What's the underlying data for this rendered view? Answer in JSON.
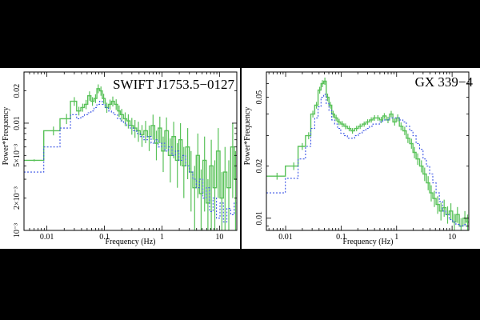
{
  "colors": {
    "background": "#000000",
    "panel": "#ffffff",
    "series_solid": "#59c259",
    "series_dashed": "#3b55e6",
    "axis": "#000000"
  },
  "chart_data": [
    {
      "type": "line",
      "title": "SWIFT J1753.5−0127",
      "xlabel": "Frequency (Hz)",
      "ylabel": "Power*Frequency",
      "xscale": "log",
      "yscale": "log",
      "xlim": [
        0.004,
        20
      ],
      "ylim": [
        0.001,
        0.03
      ],
      "x_ticks": [
        0.01,
        0.1,
        1,
        10
      ],
      "x_tick_labels": [
        "0.01",
        "0.1",
        "1",
        "10"
      ],
      "y_ticks": [
        0.001,
        0.002,
        0.005,
        0.01,
        0.02
      ],
      "y_tick_labels": [
        "10⁻³",
        "2×10⁻³",
        "5×10⁻³",
        "0.01",
        "0.02"
      ],
      "grid": false,
      "series": [
        {
          "style": "solid-steps-with-errors",
          "x": [
            0.006,
            0.013,
            0.022,
            0.03,
            0.036,
            0.042,
            0.048,
            0.055,
            0.062,
            0.07,
            0.078,
            0.087,
            0.097,
            0.11,
            0.125,
            0.14,
            0.16,
            0.18,
            0.2,
            0.23,
            0.26,
            0.3,
            0.34,
            0.39,
            0.45,
            0.52,
            0.6,
            0.7,
            0.8,
            0.92,
            1.05,
            1.2,
            1.4,
            1.6,
            1.85,
            2.1,
            2.4,
            2.8,
            3.2,
            3.7,
            4.2,
            4.8,
            5.5,
            6.3,
            7.2,
            8.3,
            9.5,
            11,
            12.5,
            14.5,
            17,
            19
          ],
          "y": [
            0.0045,
            0.0085,
            0.011,
            0.016,
            0.013,
            0.014,
            0.015,
            0.018,
            0.016,
            0.017,
            0.021,
            0.02,
            0.017,
            0.014,
            0.015,
            0.016,
            0.015,
            0.013,
            0.012,
            0.011,
            0.0105,
            0.0095,
            0.009,
            0.0085,
            0.0078,
            0.0085,
            0.0075,
            0.0095,
            0.0065,
            0.009,
            0.0055,
            0.0085,
            0.005,
            0.0075,
            0.0045,
            0.007,
            0.004,
            0.006,
            0.0035,
            0.0025,
            0.005,
            0.0022,
            0.0045,
            0.0018,
            0.004,
            0.0025,
            0.0055,
            0.002,
            0.0035,
            0.0025,
            0.006,
            0.003
          ],
          "yerr": [
            0.0001,
            0.0008,
            0.0012,
            0.0015,
            0.0012,
            0.0012,
            0.0015,
            0.0018,
            0.0015,
            0.0016,
            0.002,
            0.002,
            0.0018,
            0.0015,
            0.0016,
            0.0017,
            0.0017,
            0.0016,
            0.0016,
            0.0016,
            0.0016,
            0.0017,
            0.0017,
            0.0018,
            0.0018,
            0.002,
            0.002,
            0.0025,
            0.002,
            0.0025,
            0.002,
            0.0028,
            0.0022,
            0.0028,
            0.002,
            0.003,
            0.002,
            0.003,
            0.002,
            0.0015,
            0.003,
            0.0015,
            0.003,
            0.0012,
            0.003,
            0.002,
            0.0035,
            0.0015,
            0.0025,
            0.002,
            0.004,
            0.0025
          ]
        },
        {
          "style": "dotted-steps",
          "x": [
            0.006,
            0.013,
            0.022,
            0.03,
            0.036,
            0.042,
            0.048,
            0.055,
            0.062,
            0.07,
            0.078,
            0.087,
            0.097,
            0.11,
            0.125,
            0.14,
            0.16,
            0.18,
            0.2,
            0.23,
            0.26,
            0.3,
            0.34,
            0.39,
            0.45,
            0.52,
            0.6,
            0.7,
            0.8,
            0.92,
            1.05,
            1.2,
            1.4,
            1.6,
            1.85,
            2.1,
            2.4,
            2.8,
            3.2,
            3.7,
            4.2,
            4.8,
            5.5,
            6.3,
            7.2,
            8.3,
            9.5,
            11,
            12.5,
            14.5,
            17,
            19
          ],
          "y": [
            0.0035,
            0.006,
            0.009,
            0.012,
            0.011,
            0.0115,
            0.012,
            0.0125,
            0.013,
            0.014,
            0.015,
            0.016,
            0.015,
            0.014,
            0.013,
            0.0125,
            0.012,
            0.011,
            0.0105,
            0.01,
            0.0095,
            0.009,
            0.0085,
            0.008,
            0.0075,
            0.007,
            0.0075,
            0.0065,
            0.007,
            0.006,
            0.0065,
            0.0055,
            0.006,
            0.005,
            0.0055,
            0.0045,
            0.005,
            0.004,
            0.0035,
            0.003,
            0.0025,
            0.003,
            0.002,
            0.0025,
            0.0015,
            0.002,
            0.0013,
            0.0018,
            0.0012,
            0.0016,
            0.0014,
            0.0018
          ]
        }
      ]
    },
    {
      "type": "line",
      "title": "GX 339−4",
      "xlabel": "Frequency (Hz)",
      "ylabel": "Power*Frequency",
      "xscale": "log",
      "yscale": "log",
      "xlim": [
        0.0045,
        20
      ],
      "ylim": [
        0.0085,
        0.07
      ],
      "x_ticks": [
        0.01,
        0.1,
        1,
        10
      ],
      "x_tick_labels": [
        "0.01",
        "0.1",
        "1",
        "10"
      ],
      "y_ticks": [
        0.01,
        0.02,
        0.05
      ],
      "y_tick_labels": [
        "0.01",
        "0.02",
        "0.05"
      ],
      "grid": false,
      "series": [
        {
          "style": "solid-steps-with-errors",
          "x": [
            0.007,
            0.014,
            0.02,
            0.026,
            0.031,
            0.036,
            0.041,
            0.046,
            0.051,
            0.057,
            0.064,
            0.072,
            0.081,
            0.092,
            0.105,
            0.12,
            0.14,
            0.16,
            0.19,
            0.22,
            0.26,
            0.3,
            0.35,
            0.4,
            0.46,
            0.53,
            0.6,
            0.7,
            0.8,
            0.92,
            1.05,
            1.2,
            1.4,
            1.6,
            1.85,
            2.1,
            2.4,
            2.8,
            3.2,
            3.7,
            4.2,
            4.8,
            5.5,
            6.3,
            7.2,
            8.3,
            9.5,
            11,
            12.5,
            14.5,
            17,
            19
          ],
          "y": [
            0.0175,
            0.02,
            0.026,
            0.03,
            0.04,
            0.045,
            0.055,
            0.06,
            0.062,
            0.05,
            0.045,
            0.04,
            0.038,
            0.036,
            0.035,
            0.034,
            0.033,
            0.032,
            0.033,
            0.034,
            0.035,
            0.036,
            0.037,
            0.038,
            0.038,
            0.037,
            0.039,
            0.037,
            0.04,
            0.036,
            0.038,
            0.034,
            0.032,
            0.029,
            0.027,
            0.024,
            0.022,
            0.02,
            0.018,
            0.016,
            0.014,
            0.013,
            0.012,
            0.011,
            0.0115,
            0.0105,
            0.011,
            0.0095,
            0.0105,
            0.009,
            0.01,
            0.0095
          ],
          "yerr": [
            0.0008,
            0.001,
            0.0012,
            0.0014,
            0.0018,
            0.002,
            0.0025,
            0.0028,
            0.003,
            0.0025,
            0.002,
            0.0018,
            0.0016,
            0.0015,
            0.0014,
            0.0013,
            0.0012,
            0.0012,
            0.0012,
            0.0012,
            0.0012,
            0.0013,
            0.0013,
            0.0014,
            0.0014,
            0.0015,
            0.0015,
            0.0016,
            0.0017,
            0.0017,
            0.0018,
            0.0018,
            0.0018,
            0.0018,
            0.0018,
            0.0018,
            0.0017,
            0.0016,
            0.0016,
            0.0015,
            0.0015,
            0.0014,
            0.0014,
            0.0013,
            0.0013,
            0.0012,
            0.0012,
            0.0011,
            0.0011,
            0.001,
            0.001,
            0.001
          ]
        },
        {
          "style": "dotted-steps",
          "x": [
            0.007,
            0.014,
            0.02,
            0.026,
            0.031,
            0.036,
            0.041,
            0.046,
            0.051,
            0.057,
            0.064,
            0.072,
            0.081,
            0.092,
            0.105,
            0.12,
            0.14,
            0.16,
            0.19,
            0.22,
            0.26,
            0.3,
            0.35,
            0.4,
            0.46,
            0.53,
            0.6,
            0.7,
            0.8,
            0.92,
            1.05,
            1.2,
            1.4,
            1.6,
            1.85,
            2.1,
            2.4,
            2.8,
            3.2,
            3.7,
            4.2,
            4.8,
            5.5,
            6.3,
            7.2,
            8.3,
            9.5,
            11,
            12.5,
            14.5,
            17,
            19
          ],
          "y": [
            0.014,
            0.017,
            0.022,
            0.026,
            0.033,
            0.038,
            0.044,
            0.05,
            0.052,
            0.046,
            0.042,
            0.037,
            0.035,
            0.033,
            0.031,
            0.03,
            0.029,
            0.029,
            0.03,
            0.031,
            0.032,
            0.033,
            0.034,
            0.035,
            0.035,
            0.036,
            0.037,
            0.037,
            0.038,
            0.038,
            0.038,
            0.037,
            0.036,
            0.034,
            0.032,
            0.03,
            0.027,
            0.025,
            0.022,
            0.02,
            0.018,
            0.016,
            0.014,
            0.0125,
            0.011,
            0.0105,
            0.0098,
            0.0095,
            0.0092,
            0.009,
            0.0092,
            0.009
          ]
        }
      ]
    }
  ]
}
